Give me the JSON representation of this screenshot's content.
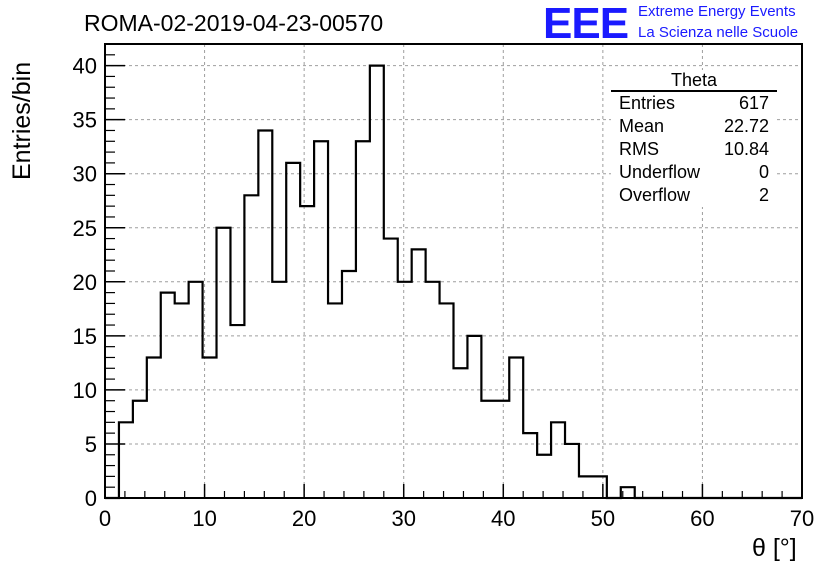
{
  "header": {
    "title": "ROMA-02-2019-04-23-00570",
    "logo_text": "EEE",
    "logo_line1": "Extreme Energy Events",
    "logo_line2": "La Scienza nelle Scuole"
  },
  "stats": {
    "title": "Theta",
    "rows": [
      {
        "label": "Entries",
        "value": "617"
      },
      {
        "label": "Mean",
        "value": "22.72"
      },
      {
        "label": "RMS",
        "value": "10.84"
      },
      {
        "label": "Underflow",
        "value": "0"
      },
      {
        "label": "Overflow",
        "value": "2"
      }
    ]
  },
  "colors": {
    "logo": "#1a1aff",
    "line": "#000000",
    "grid": "#9e9e9e"
  },
  "chart_data": {
    "type": "bar",
    "style": "step-histogram",
    "xlabel": "θ [°]",
    "ylabel": "Entries/bin",
    "xlim": [
      0,
      70
    ],
    "ylim": [
      0,
      42
    ],
    "grid": true,
    "legend_placement": "top-right",
    "bin_width": 1.4,
    "x_ticks": [
      "0",
      "10",
      "20",
      "30",
      "40",
      "50",
      "60",
      "70"
    ],
    "y_ticks": [
      "0",
      "5",
      "10",
      "15",
      "20",
      "25",
      "30",
      "35",
      "40"
    ],
    "bin_edges_start": 0,
    "values": [
      0,
      7,
      9,
      13,
      19,
      18,
      20,
      13,
      25,
      16,
      28,
      34,
      20,
      31,
      27,
      33,
      18,
      21,
      33,
      40,
      24,
      20,
      23,
      20,
      18,
      12,
      15,
      9,
      9,
      13,
      6,
      4,
      7,
      5,
      2,
      2,
      0,
      1,
      0,
      0,
      0,
      0,
      0,
      0,
      0,
      0,
      0,
      0,
      0,
      0
    ]
  }
}
